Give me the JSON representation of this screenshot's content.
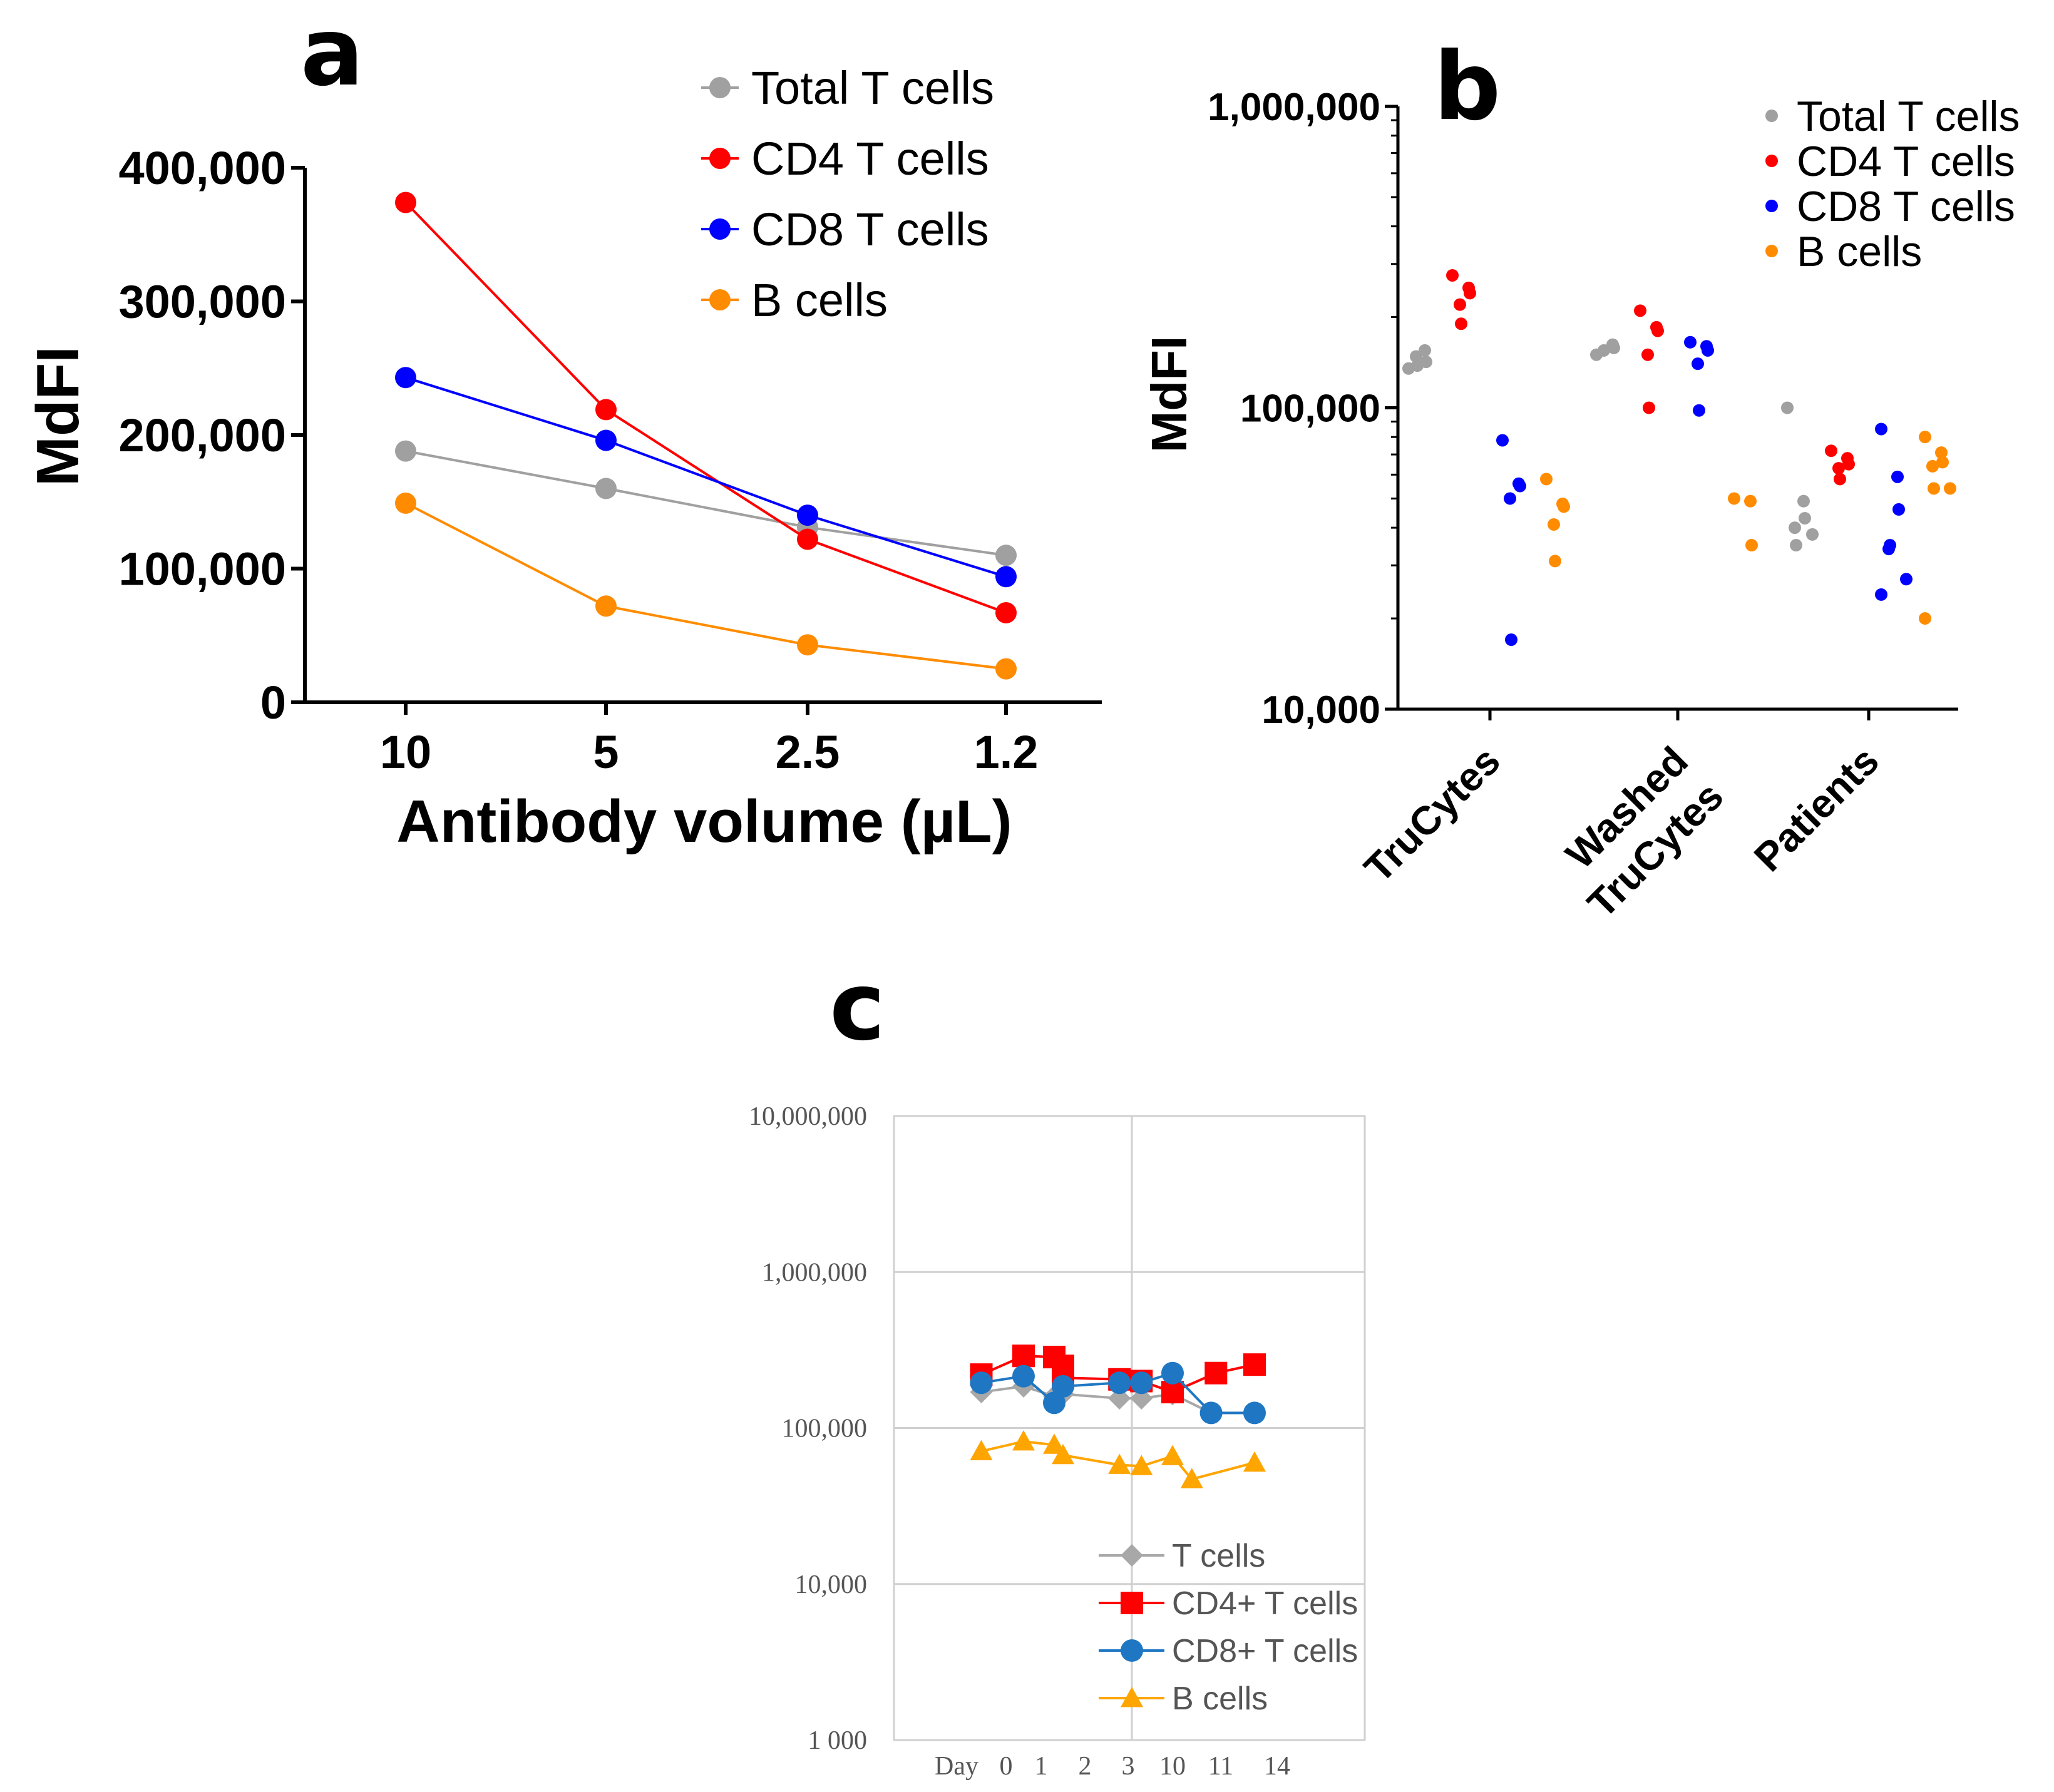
{
  "chart_data": [
    {
      "panel": "a",
      "type": "line",
      "xlabel": "Antibody volume (µL)",
      "ylabel": "MdFI",
      "categories": [
        "10",
        "5",
        "2.5",
        "1.2"
      ],
      "yticks": [
        "0",
        "100,000",
        "200,000",
        "300,000",
        "400,000"
      ],
      "ylim": [
        0,
        400000
      ],
      "series": [
        {
          "name": "Total T cells",
          "color": "#A0A0A0",
          "values": [
            188000,
            160000,
            131000,
            110000
          ]
        },
        {
          "name": "CD4 T cells",
          "color": "#FF0000",
          "values": [
            374000,
            219000,
            122000,
            67000
          ]
        },
        {
          "name": "CD8 T cells",
          "color": "#0000FF",
          "values": [
            243000,
            196000,
            140000,
            94000
          ]
        },
        {
          "name": "B cells",
          "color": "#FF8C00",
          "values": [
            149000,
            72000,
            43000,
            25000
          ]
        }
      ],
      "legend": "top-right"
    },
    {
      "panel": "b",
      "type": "scatter",
      "ylabel": "MdFI",
      "yscale": "log",
      "ylim": [
        10000,
        1000000
      ],
      "yticks": [
        "10,000",
        "100,000",
        "1,000,000"
      ],
      "categories": [
        "TruCytes",
        "Washed TruCytes",
        "Patients"
      ],
      "category_label_lines": [
        [
          "TruCytes"
        ],
        [
          "Washed",
          "TruCytes"
        ],
        [
          "Patients"
        ]
      ],
      "series": [
        {
          "name": "Total T cells",
          "color": "#A0A0A0",
          "points": [
            [
              135000,
              155000,
              142000,
              148000,
              138000
            ],
            [
              150000,
              162000,
              158000,
              155000
            ],
            [
              100000,
              49000,
              43000,
              40000,
              35000,
              38000
            ]
          ]
        },
        {
          "name": "CD4 T cells",
          "color": "#FF0000",
          "points": [
            [
              275000,
              250000,
              240000,
              220000,
              190000
            ],
            [
              210000,
              185000,
              180000,
              150000,
              100000
            ],
            [
              72000,
              68000,
              65000,
              63000,
              58000
            ]
          ]
        },
        {
          "name": "CD8 T cells",
          "color": "#0000FF",
          "points": [
            [
              78000,
              56000,
              55000,
              50000,
              17000
            ],
            [
              165000,
              160000,
              155000,
              140000,
              98000
            ],
            [
              85000,
              59000,
              46000,
              34000,
              35000,
              27000,
              24000
            ]
          ]
        },
        {
          "name": "B cells",
          "color": "#FF8C00",
          "points": [
            [
              58000,
              48000,
              47000,
              41000,
              31000
            ],
            [
              50000,
              49000,
              35000
            ],
            [
              80000,
              71000,
              66000,
              64000,
              54000,
              54000,
              20000
            ]
          ]
        }
      ],
      "legend": "top-right"
    },
    {
      "panel": "c",
      "type": "line",
      "yscale": "log",
      "ylim": [
        1000,
        10000000
      ],
      "yticks": [
        "1 000",
        "10,000",
        "100,000",
        "1,000,000",
        "10,000,000"
      ],
      "xticks": [
        "Day",
        "0",
        "1",
        "2",
        "3",
        "10",
        "11",
        "14"
      ],
      "series": [
        {
          "name": "T cells",
          "color": "#A8A8A8",
          "marker": "diamond",
          "points": [
            [
              -0.5,
              170000
            ],
            [
              0.5,
              185000
            ],
            [
              1.3,
              160000
            ],
            [
              1.5,
              165000
            ],
            [
              2.8,
              155000
            ],
            [
              3.3,
              155000
            ],
            [
              4.0,
              165000
            ],
            [
              4.8,
              125000
            ],
            [
              5.6,
              125000
            ]
          ]
        },
        {
          "name": "CD4+ T cells",
          "color": "#FF0000",
          "marker": "square",
          "points": [
            [
              -0.5,
              220000
            ],
            [
              0.5,
              290000
            ],
            [
              1.3,
              285000
            ],
            [
              1.5,
              250000
            ],
            [
              1.5,
              210000
            ],
            [
              2.8,
              205000
            ],
            [
              3.3,
              200000
            ],
            [
              4.0,
              170000
            ],
            [
              4.9,
              225000
            ],
            [
              5.6,
              255000
            ]
          ]
        },
        {
          "name": "CD8+ T cells",
          "color": "#1F77C4",
          "marker": "circle",
          "points": [
            [
              -0.5,
              195000
            ],
            [
              0.5,
              215000
            ],
            [
              1.3,
              145000
            ],
            [
              1.5,
              185000
            ],
            [
              2.8,
              195000
            ],
            [
              3.3,
              195000
            ],
            [
              4.0,
              225000
            ],
            [
              4.8,
              125000
            ],
            [
              5.6,
              125000
            ]
          ]
        },
        {
          "name": "B cells",
          "color": "#FFA500",
          "marker": "triangle",
          "points": [
            [
              -0.5,
              71000
            ],
            [
              0.5,
              82000
            ],
            [
              1.3,
              78000
            ],
            [
              1.5,
              67000
            ],
            [
              2.8,
              58000
            ],
            [
              3.3,
              57000
            ],
            [
              4.0,
              66000
            ],
            [
              4.4,
              47000
            ],
            [
              5.6,
              60000
            ]
          ]
        }
      ],
      "legend": "bottom-center"
    }
  ],
  "labels": {
    "panel_a": "a",
    "panel_b": "b",
    "panel_c": "c"
  }
}
